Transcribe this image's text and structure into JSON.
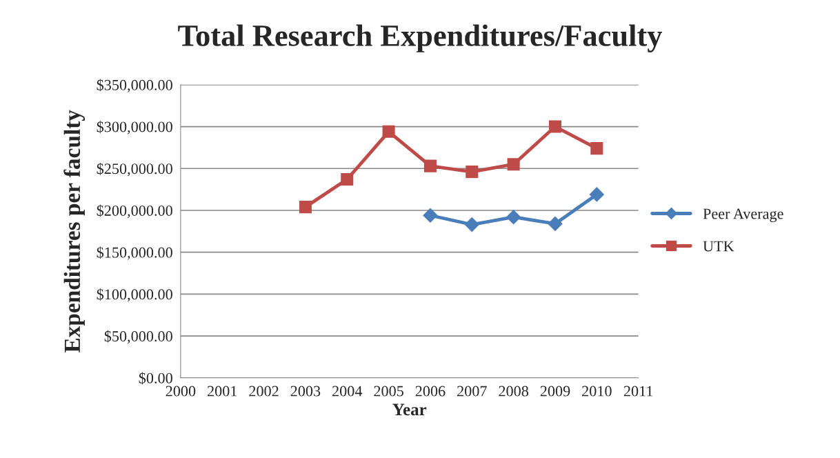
{
  "chart_data": {
    "type": "line",
    "title": "Total Research Expenditures/Faculty",
    "xlabel": "Year",
    "ylabel": "Expenditures per faculty",
    "xlim": [
      2000,
      2011
    ],
    "xticks": [
      2000,
      2001,
      2002,
      2003,
      2004,
      2005,
      2006,
      2007,
      2008,
      2009,
      2010,
      2011
    ],
    "ylim": [
      0,
      350000
    ],
    "yticks": [
      {
        "value": 0,
        "label": "$0.00"
      },
      {
        "value": 50000,
        "label": "$50,000.00"
      },
      {
        "value": 100000,
        "label": "$100,000.00"
      },
      {
        "value": 150000,
        "label": "$150,000.00"
      },
      {
        "value": 200000,
        "label": "$200,000.00"
      },
      {
        "value": 250000,
        "label": "$250,000.00"
      },
      {
        "value": 300000,
        "label": "$300,000.00"
      },
      {
        "value": 350000,
        "label": "$350,000.00"
      }
    ],
    "grid": "y",
    "legend": "right",
    "series": [
      {
        "name": "Peer Average",
        "color": "#4a7ebb",
        "marker": "diamond",
        "x": [
          2006,
          2007,
          2008,
          2009,
          2010
        ],
        "values": [
          194000,
          183000,
          192000,
          184000,
          219000
        ]
      },
      {
        "name": "UTK",
        "color": "#be4b48",
        "marker": "square",
        "x": [
          2003,
          2004,
          2005,
          2006,
          2007,
          2008,
          2009,
          2010
        ],
        "values": [
          204000,
          237000,
          294000,
          253000,
          246000,
          255000,
          300000,
          274000
        ]
      }
    ]
  }
}
